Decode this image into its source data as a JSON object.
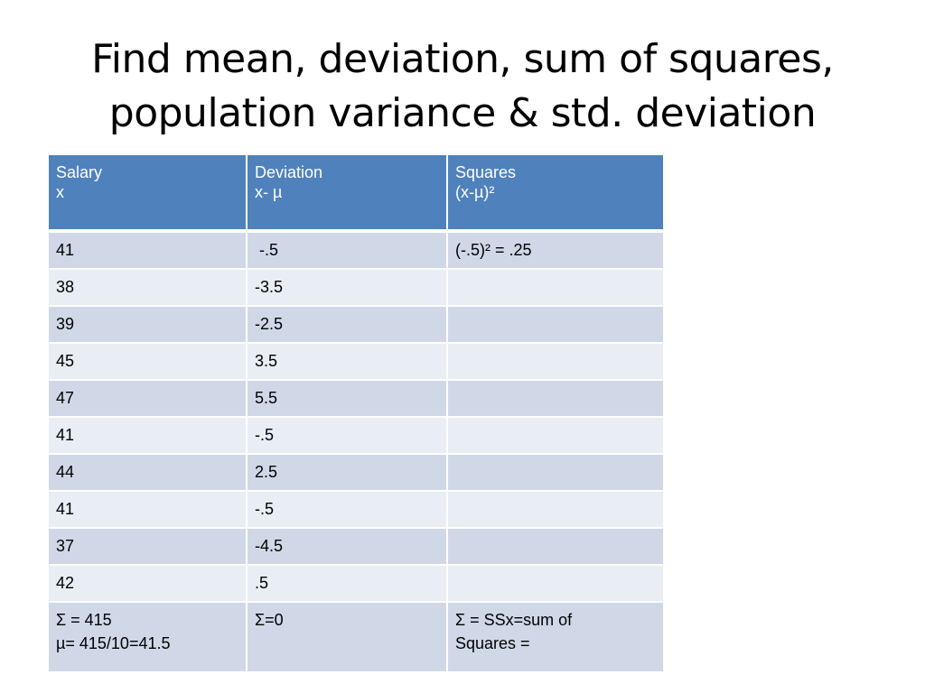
{
  "title": {
    "line1": "Find mean, deviation, sum of squares,",
    "line2": "population variance & std. deviation"
  },
  "table": {
    "headers": [
      {
        "line1": "Salary",
        "line2": "x"
      },
      {
        "line1": "Deviation",
        "line2": "x- µ"
      },
      {
        "line1": "Squares",
        "line2": "(x-µ)²"
      }
    ],
    "rows": [
      [
        "41",
        " -.5",
        "(-.5)² = .25"
      ],
      [
        "38",
        "-3.5",
        ""
      ],
      [
        "39",
        "-2.5",
        ""
      ],
      [
        "45",
        "3.5",
        ""
      ],
      [
        "47",
        "5.5",
        ""
      ],
      [
        "41",
        "-.5",
        ""
      ],
      [
        "44",
        "2.5",
        ""
      ],
      [
        "41",
        "-.5",
        ""
      ],
      [
        "37",
        "-4.5",
        ""
      ],
      [
        "42",
        ".5",
        ""
      ]
    ],
    "summary": {
      "salary": {
        "line1": "Σ = 415",
        "line2": "µ= 415/10=41.5"
      },
      "deviation": {
        "line1": "Σ=0",
        "line2": ""
      },
      "squares": {
        "line1": "Σ = SSx=sum of",
        "line2": "Squares ="
      }
    }
  },
  "colors": {
    "header_bg": "#4f81bd",
    "row_dark": "#d0d8e8",
    "row_light": "#e9edf4"
  }
}
